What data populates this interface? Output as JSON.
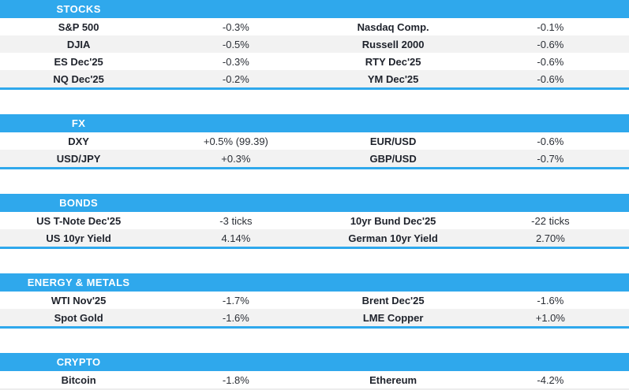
{
  "colors": {
    "accent_blue": "#2FA8EC",
    "stripe_gray": "#F2F2F2",
    "label_text": "#1E222B",
    "value_text": "#2B2F36",
    "header_text": "#FFFFFF",
    "clipped_gray": "#EDEDED"
  },
  "chart_data": {
    "type": "table",
    "layout": "four-column: instrument | change | instrument | change",
    "sections": [
      {
        "title": "STOCKS",
        "rows": [
          [
            "S&P 500",
            "-0.3%",
            "Nasdaq Comp.",
            "-0.1%"
          ],
          [
            "DJIA",
            "-0.5%",
            "Russell 2000",
            "-0.6%"
          ],
          [
            "ES Dec'25",
            "-0.3%",
            "RTY Dec'25",
            "-0.6%"
          ],
          [
            "NQ Dec'25",
            "-0.2%",
            "YM Dec'25",
            "-0.6%"
          ]
        ]
      },
      {
        "title": "FX",
        "rows": [
          [
            "DXY",
            "+0.5% (99.39)",
            "EUR/USD",
            "-0.6%"
          ],
          [
            "USD/JPY",
            "+0.3%",
            "GBP/USD",
            "-0.7%"
          ]
        ]
      },
      {
        "title": "BONDS",
        "rows": [
          [
            "US T-Note Dec'25",
            "-3 ticks",
            "10yr Bund Dec'25",
            "-22 ticks"
          ],
          [
            "US 10yr Yield",
            "4.14%",
            "German 10yr Yield",
            "2.70%"
          ]
        ]
      },
      {
        "title": "ENERGY & METALS",
        "rows": [
          [
            "WTI Nov'25",
            "-1.7%",
            "Brent Dec'25",
            "-1.6%"
          ],
          [
            "Spot Gold",
            "-1.6%",
            "LME Copper",
            "+1.0%"
          ]
        ]
      },
      {
        "title": "CRYPTO",
        "rows": [
          [
            "Bitcoin",
            "-1.8%",
            "Ethereum",
            "-4.2%"
          ]
        ]
      }
    ]
  }
}
